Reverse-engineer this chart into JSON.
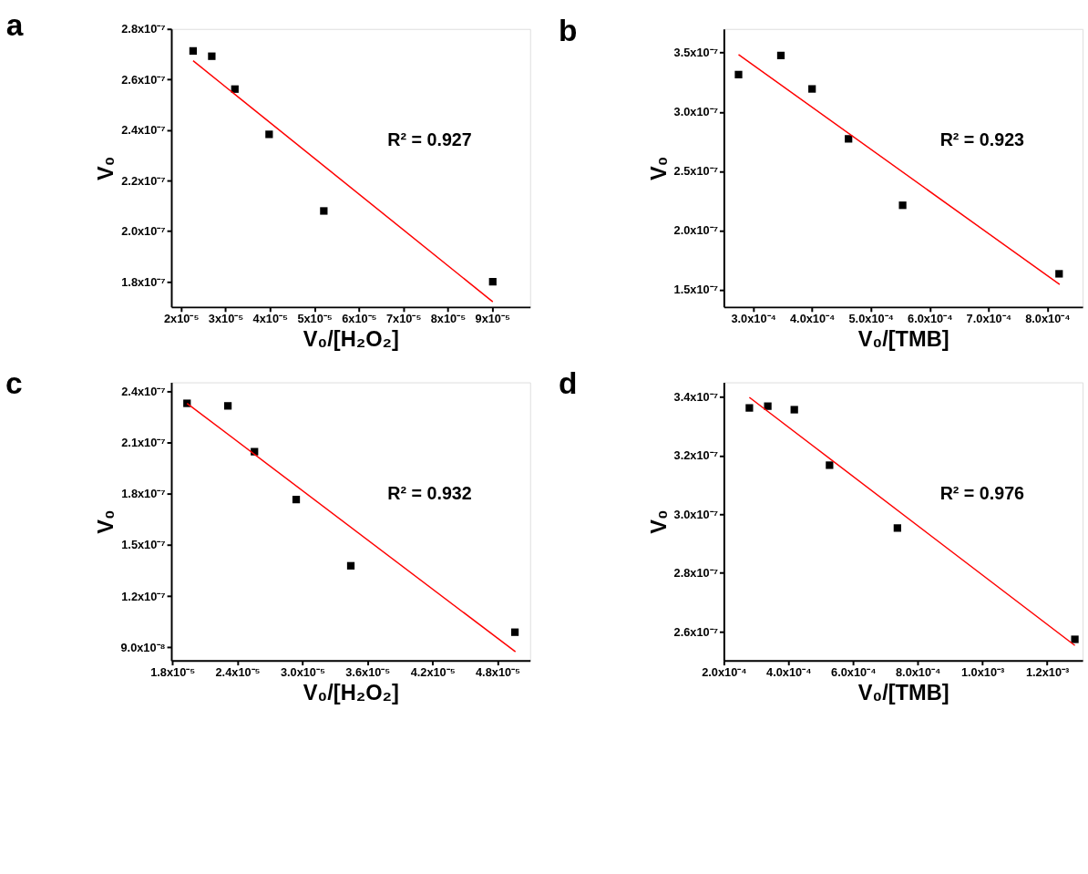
{
  "chart_data": [
    {
      "type": "scatter",
      "title": "a",
      "xlabel": "V₀/[H₂O₂]",
      "ylabel": "V₀",
      "annotations": [
        "R² = 0.927"
      ],
      "grid": false,
      "xlim": [
        1.78e-05,
        9.85e-05
      ],
      "xticks": [
        {
          "value": 2e-05,
          "label": "2x10⁻⁵"
        },
        {
          "value": 3e-05,
          "label": "3x10⁻⁵"
        },
        {
          "value": 4e-05,
          "label": "4x10⁻⁵"
        },
        {
          "value": 5e-05,
          "label": "5x10⁻⁵"
        },
        {
          "value": 6e-05,
          "label": "6x10⁻⁵"
        },
        {
          "value": 7e-05,
          "label": "7x10⁻⁵"
        },
        {
          "value": 8e-05,
          "label": "8x10⁻⁵"
        },
        {
          "value": 9e-05,
          "label": "9x10⁻⁵"
        }
      ],
      "ylim": [
        1.7e-07,
        2.8e-07
      ],
      "yticks": [
        {
          "value": 1.8e-07,
          "label": "1.8x10⁻⁷"
        },
        {
          "value": 2e-07,
          "label": "2.0x10⁻⁷"
        },
        {
          "value": 2.2e-07,
          "label": "2.2x10⁻⁷"
        },
        {
          "value": 2.4e-07,
          "label": "2.4x10⁻⁷"
        },
        {
          "value": 2.6e-07,
          "label": "2.6x10⁻⁷"
        },
        {
          "value": 2.8e-07,
          "label": "2.8x10⁻⁷"
        }
      ],
      "series": [
        {
          "color": "#000000",
          "marker": "square",
          "x": [
            2.27e-05,
            2.69e-05,
            3.21e-05,
            3.98e-05,
            5.21e-05,
            9.01e-05
          ],
          "values": [
            2.713e-07,
            2.692e-07,
            2.562e-07,
            2.383e-07,
            2.08e-07,
            1.8e-07
          ]
        },
        {
          "type": "line",
          "color": "#ff0000",
          "x": [
            2.27e-05,
            9.01e-05
          ],
          "values": [
            2.674e-07,
            1.721e-07
          ]
        }
      ]
    },
    {
      "type": "scatter",
      "title": "b",
      "xlabel": "V₀/[TMB]",
      "ylabel": "V₀",
      "annotations": [
        "R² = 0.923"
      ],
      "grid": false,
      "xlim": [
        0.00025,
        0.00086
      ],
      "xticks": [
        {
          "value": 0.0003,
          "label": "3.0x10⁻⁴"
        },
        {
          "value": 0.0004,
          "label": "4.0x10⁻⁴"
        },
        {
          "value": 0.0005,
          "label": "5.0x10⁻⁴"
        },
        {
          "value": 0.0006,
          "label": "6.0x10⁻⁴"
        },
        {
          "value": 0.0007,
          "label": "7.0x10⁻⁴"
        },
        {
          "value": 0.0008,
          "label": "8.0x10⁻⁴"
        }
      ],
      "ylim": [
        1.355e-07,
        3.7e-07
      ],
      "yticks": [
        {
          "value": 1.5e-07,
          "label": "1.5x10⁻⁷"
        },
        {
          "value": 2e-07,
          "label": "2.0x10⁻⁷"
        },
        {
          "value": 2.5e-07,
          "label": "2.5x10⁻⁷"
        },
        {
          "value": 3e-07,
          "label": "3.0x10⁻⁷"
        },
        {
          "value": 3.5e-07,
          "label": "3.5x10⁻⁷"
        }
      ],
      "series": [
        {
          "color": "#000000",
          "marker": "square",
          "x": [
            0.000275,
            0.000347,
            0.0004,
            0.000462,
            0.000554,
            0.00082
          ],
          "values": [
            3.315e-07,
            3.476e-07,
            3.194e-07,
            2.773e-07,
            2.213e-07,
            1.635e-07
          ]
        },
        {
          "type": "line",
          "color": "#ff0000",
          "x": [
            0.000275,
            0.000821
          ],
          "values": [
            3.483e-07,
            1.545e-07
          ]
        }
      ]
    },
    {
      "type": "scatter",
      "title": "c",
      "xlabel": "V₀/[H₂O₂]",
      "ylabel": "V₀",
      "annotations": [
        "R² = 0.932"
      ],
      "grid": false,
      "xlim": [
        1.79e-05,
        5.1e-05
      ],
      "xticks": [
        {
          "value": 1.8e-05,
          "label": "1.8x10⁻⁵"
        },
        {
          "value": 2.4e-05,
          "label": "2.4x10⁻⁵"
        },
        {
          "value": 3e-05,
          "label": "3.0x10⁻⁵"
        },
        {
          "value": 3.6e-05,
          "label": "3.6x10⁻⁵"
        },
        {
          "value": 4.2e-05,
          "label": "4.2x10⁻⁵"
        },
        {
          "value": 4.8e-05,
          "label": "4.8x10⁻⁵"
        }
      ],
      "ylim": [
        8.22e-08,
        2.455e-07
      ],
      "yticks": [
        {
          "value": 9e-08,
          "label": "9.0x10⁻⁸"
        },
        {
          "value": 1.2e-07,
          "label": "1.2x10⁻⁷"
        },
        {
          "value": 1.5e-07,
          "label": "1.5x10⁻⁷"
        },
        {
          "value": 1.8e-07,
          "label": "1.8x10⁻⁷"
        },
        {
          "value": 2.1e-07,
          "label": "2.1x10⁻⁷"
        },
        {
          "value": 2.4e-07,
          "label": "2.4x10⁻⁷"
        }
      ],
      "series": [
        {
          "color": "#000000",
          "marker": "square",
          "x": [
            1.935e-05,
            2.312e-05,
            2.557e-05,
            2.942e-05,
            3.446e-05,
            4.96e-05
          ],
          "values": [
            2.332e-07,
            2.317e-07,
            2.048e-07,
            1.767e-07,
            1.378e-07,
            9.88e-08
          ]
        },
        {
          "type": "line",
          "color": "#ff0000",
          "x": [
            1.935e-05,
            4.965e-05
          ],
          "values": [
            2.332e-07,
            8.73e-08
          ]
        }
      ]
    },
    {
      "type": "scatter",
      "title": "d",
      "xlabel": "V₀/[TMB]",
      "ylabel": "V₀",
      "annotations": [
        "R² = 0.976"
      ],
      "grid": false,
      "xlim": [
        0.0002,
        0.00131
      ],
      "xticks": [
        {
          "value": 0.0002,
          "label": "2.0x10⁻⁴"
        },
        {
          "value": 0.0004,
          "label": "4.0x10⁻⁴"
        },
        {
          "value": 0.0006,
          "label": "6.0x10⁻⁴"
        },
        {
          "value": 0.0008,
          "label": "8.0x10⁻⁴"
        },
        {
          "value": 0.001,
          "label": "1.0x10⁻³"
        },
        {
          "value": 0.0012,
          "label": "1.2x10⁻³"
        }
      ],
      "ylim": [
        2.502e-07,
        3.449e-07
      ],
      "yticks": [
        {
          "value": 2.6e-07,
          "label": "2.6x10⁻⁷"
        },
        {
          "value": 2.8e-07,
          "label": "2.8x10⁻⁷"
        },
        {
          "value": 3e-07,
          "label": "3.0x10⁻⁷"
        },
        {
          "value": 3.2e-07,
          "label": "3.2x10⁻⁷"
        },
        {
          "value": 3.4e-07,
          "label": "3.4x10⁻⁷"
        }
      ],
      "series": [
        {
          "color": "#000000",
          "marker": "square",
          "x": [
            0.000279,
            0.000336,
            0.000418,
            0.000527,
            0.000737,
            0.001286
          ],
          "values": [
            3.362e-07,
            3.368e-07,
            3.356e-07,
            3.167e-07,
            2.953e-07,
            2.574e-07
          ]
        },
        {
          "type": "line",
          "color": "#ff0000",
          "x": [
            0.000279,
            0.001286
          ],
          "values": [
            3.398e-07,
            2.553e-07
          ]
        }
      ]
    }
  ]
}
